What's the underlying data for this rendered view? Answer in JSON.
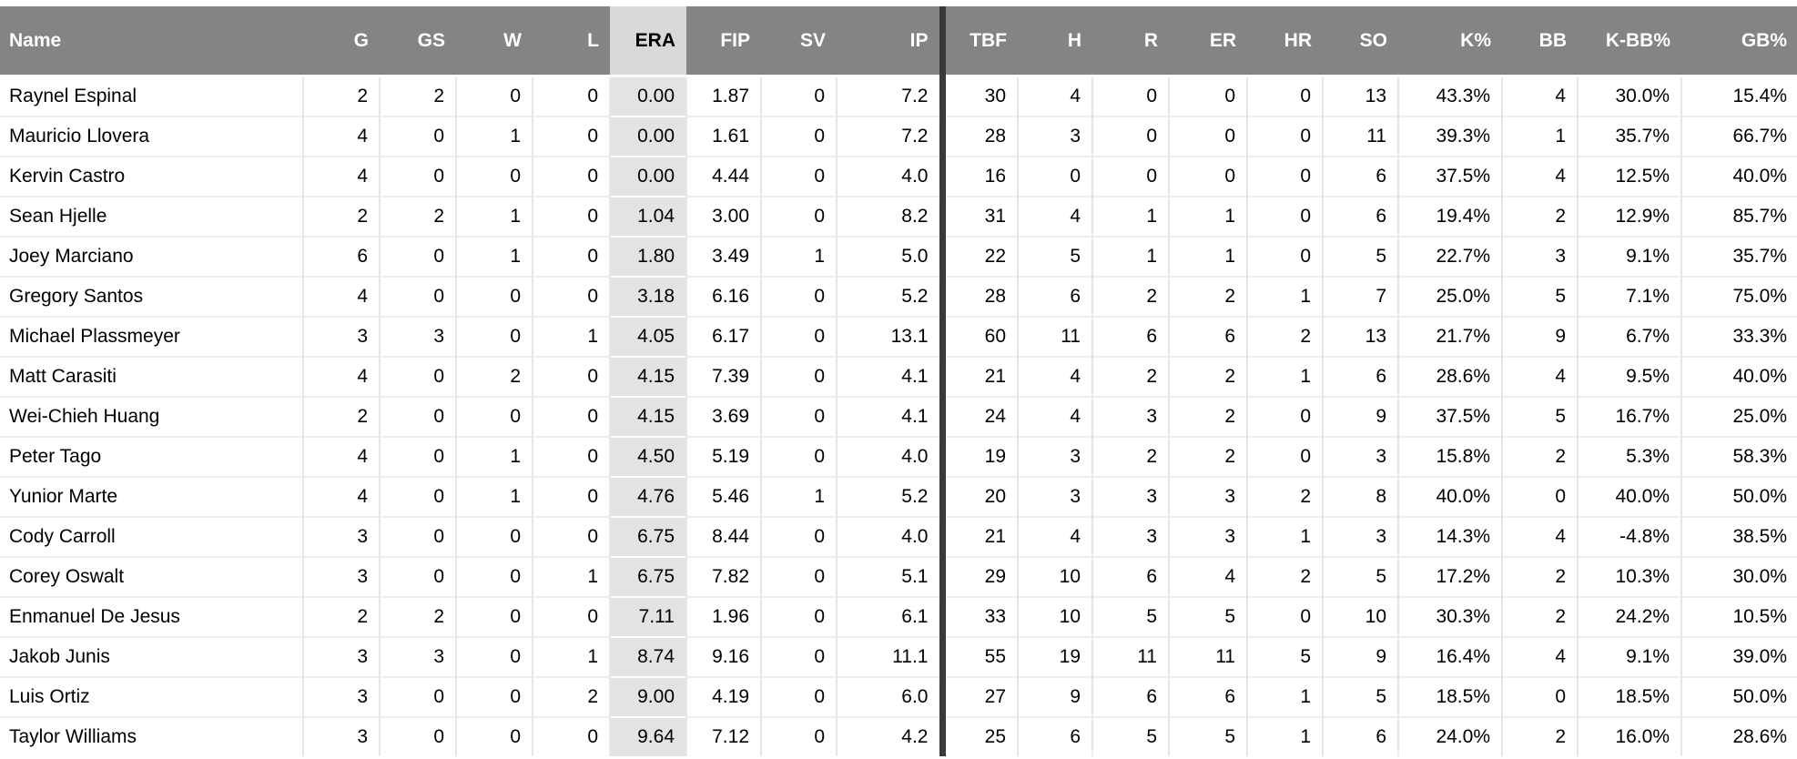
{
  "colors": {
    "header_bg": "#848484",
    "header_text": "#ffffff",
    "era_header_bg": "#d9d9d9",
    "era_cell_bg": "#e3e3e3",
    "divider": "#3a3a3a",
    "row_border": "#ededed",
    "col_border": "#e7e7e7",
    "text": "#000000"
  },
  "table": {
    "columns": [
      {
        "key": "name",
        "label": "Name",
        "align": "left",
        "highlighted": false,
        "divider_after": false
      },
      {
        "key": "g",
        "label": "G",
        "align": "right",
        "highlighted": false,
        "divider_after": false
      },
      {
        "key": "gs",
        "label": "GS",
        "align": "right",
        "highlighted": false,
        "divider_after": false
      },
      {
        "key": "w",
        "label": "W",
        "align": "right",
        "highlighted": false,
        "divider_after": false
      },
      {
        "key": "l",
        "label": "L",
        "align": "right",
        "highlighted": false,
        "divider_after": false
      },
      {
        "key": "era",
        "label": "ERA",
        "align": "right",
        "highlighted": true,
        "divider_after": false
      },
      {
        "key": "fip",
        "label": "FIP",
        "align": "right",
        "highlighted": false,
        "divider_after": false
      },
      {
        "key": "sv",
        "label": "SV",
        "align": "right",
        "highlighted": false,
        "divider_after": false
      },
      {
        "key": "ip",
        "label": "IP",
        "align": "right",
        "highlighted": false,
        "divider_after": true
      },
      {
        "key": "tbf",
        "label": "TBF",
        "align": "right",
        "highlighted": false,
        "divider_after": false
      },
      {
        "key": "h",
        "label": "H",
        "align": "right",
        "highlighted": false,
        "divider_after": false
      },
      {
        "key": "r",
        "label": "R",
        "align": "right",
        "highlighted": false,
        "divider_after": false
      },
      {
        "key": "er",
        "label": "ER",
        "align": "right",
        "highlighted": false,
        "divider_after": false
      },
      {
        "key": "hr",
        "label": "HR",
        "align": "right",
        "highlighted": false,
        "divider_after": false
      },
      {
        "key": "so",
        "label": "SO",
        "align": "right",
        "highlighted": false,
        "divider_after": false
      },
      {
        "key": "kpct",
        "label": "K%",
        "align": "right",
        "highlighted": false,
        "divider_after": false
      },
      {
        "key": "bb",
        "label": "BB",
        "align": "right",
        "highlighted": false,
        "divider_after": false
      },
      {
        "key": "kbbpct",
        "label": "K-BB%",
        "align": "right",
        "highlighted": false,
        "divider_after": false
      },
      {
        "key": "gbpct",
        "label": "GB%",
        "align": "right",
        "highlighted": false,
        "divider_after": false
      }
    ],
    "rows": [
      [
        "Raynel Espinal",
        "2",
        "2",
        "0",
        "0",
        "0.00",
        "1.87",
        "0",
        "7.2",
        "30",
        "4",
        "0",
        "0",
        "0",
        "13",
        "43.3%",
        "4",
        "30.0%",
        "15.4%"
      ],
      [
        "Mauricio Llovera",
        "4",
        "0",
        "1",
        "0",
        "0.00",
        "1.61",
        "0",
        "7.2",
        "28",
        "3",
        "0",
        "0",
        "0",
        "11",
        "39.3%",
        "1",
        "35.7%",
        "66.7%"
      ],
      [
        "Kervin Castro",
        "4",
        "0",
        "0",
        "0",
        "0.00",
        "4.44",
        "0",
        "4.0",
        "16",
        "0",
        "0",
        "0",
        "0",
        "6",
        "37.5%",
        "4",
        "12.5%",
        "40.0%"
      ],
      [
        "Sean Hjelle",
        "2",
        "2",
        "1",
        "0",
        "1.04",
        "3.00",
        "0",
        "8.2",
        "31",
        "4",
        "1",
        "1",
        "0",
        "6",
        "19.4%",
        "2",
        "12.9%",
        "85.7%"
      ],
      [
        "Joey Marciano",
        "6",
        "0",
        "1",
        "0",
        "1.80",
        "3.49",
        "1",
        "5.0",
        "22",
        "5",
        "1",
        "1",
        "0",
        "5",
        "22.7%",
        "3",
        "9.1%",
        "35.7%"
      ],
      [
        "Gregory Santos",
        "4",
        "0",
        "0",
        "0",
        "3.18",
        "6.16",
        "0",
        "5.2",
        "28",
        "6",
        "2",
        "2",
        "1",
        "7",
        "25.0%",
        "5",
        "7.1%",
        "75.0%"
      ],
      [
        "Michael Plassmeyer",
        "3",
        "3",
        "0",
        "1",
        "4.05",
        "6.17",
        "0",
        "13.1",
        "60",
        "11",
        "6",
        "6",
        "2",
        "13",
        "21.7%",
        "9",
        "6.7%",
        "33.3%"
      ],
      [
        "Matt Carasiti",
        "4",
        "0",
        "2",
        "0",
        "4.15",
        "7.39",
        "0",
        "4.1",
        "21",
        "4",
        "2",
        "2",
        "1",
        "6",
        "28.6%",
        "4",
        "9.5%",
        "40.0%"
      ],
      [
        "Wei-Chieh Huang",
        "2",
        "0",
        "0",
        "0",
        "4.15",
        "3.69",
        "0",
        "4.1",
        "24",
        "4",
        "3",
        "2",
        "0",
        "9",
        "37.5%",
        "5",
        "16.7%",
        "25.0%"
      ],
      [
        "Peter Tago",
        "4",
        "0",
        "1",
        "0",
        "4.50",
        "5.19",
        "0",
        "4.0",
        "19",
        "3",
        "2",
        "2",
        "0",
        "3",
        "15.8%",
        "2",
        "5.3%",
        "58.3%"
      ],
      [
        "Yunior Marte",
        "4",
        "0",
        "1",
        "0",
        "4.76",
        "5.46",
        "1",
        "5.2",
        "20",
        "3",
        "3",
        "3",
        "2",
        "8",
        "40.0%",
        "0",
        "40.0%",
        "50.0%"
      ],
      [
        "Cody Carroll",
        "3",
        "0",
        "0",
        "0",
        "6.75",
        "8.44",
        "0",
        "4.0",
        "21",
        "4",
        "3",
        "3",
        "1",
        "3",
        "14.3%",
        "4",
        "-4.8%",
        "38.5%"
      ],
      [
        "Corey Oswalt",
        "3",
        "0",
        "0",
        "1",
        "6.75",
        "7.82",
        "0",
        "5.1",
        "29",
        "10",
        "6",
        "4",
        "2",
        "5",
        "17.2%",
        "2",
        "10.3%",
        "30.0%"
      ],
      [
        "Enmanuel De Jesus",
        "2",
        "2",
        "0",
        "0",
        "7.11",
        "1.96",
        "0",
        "6.1",
        "33",
        "10",
        "5",
        "5",
        "0",
        "10",
        "30.3%",
        "2",
        "24.2%",
        "10.5%"
      ],
      [
        "Jakob Junis",
        "3",
        "3",
        "0",
        "1",
        "8.74",
        "9.16",
        "0",
        "11.1",
        "55",
        "19",
        "11",
        "11",
        "5",
        "9",
        "16.4%",
        "4",
        "9.1%",
        "39.0%"
      ],
      [
        "Luis Ortiz",
        "3",
        "0",
        "0",
        "2",
        "9.00",
        "4.19",
        "0",
        "6.0",
        "27",
        "9",
        "6",
        "6",
        "1",
        "5",
        "18.5%",
        "0",
        "18.5%",
        "50.0%"
      ],
      [
        "Taylor Williams",
        "3",
        "0",
        "0",
        "0",
        "9.64",
        "7.12",
        "0",
        "4.2",
        "25",
        "6",
        "5",
        "5",
        "1",
        "6",
        "24.0%",
        "2",
        "16.0%",
        "28.6%"
      ]
    ]
  }
}
